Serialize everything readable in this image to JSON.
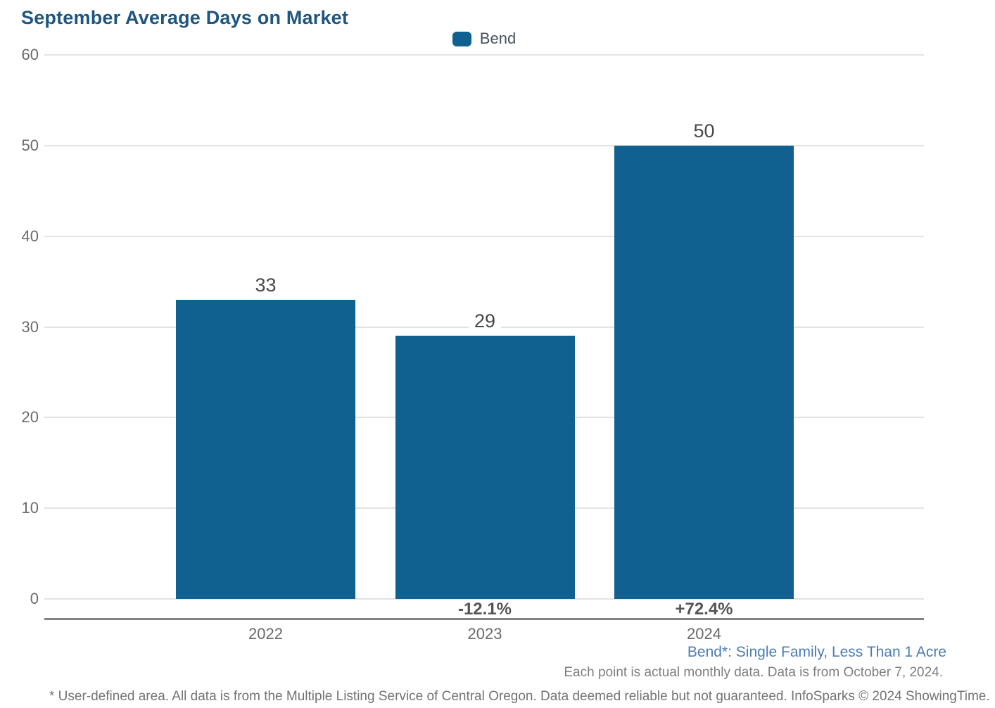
{
  "chart": {
    "title": "September Average Days on Market",
    "legend_label": "Bend"
  },
  "chart_data": {
    "type": "bar",
    "title": "September Average Days on Market",
    "categories": [
      "2022",
      "2023",
      "2024"
    ],
    "series": [
      {
        "name": "Bend",
        "values": [
          33,
          29,
          50
        ]
      }
    ],
    "value_labels": [
      "33",
      "29",
      "50"
    ],
    "pct_change_labels": [
      "",
      "-12.1%",
      "+72.4%"
    ],
    "ylabel": "",
    "xlabel": "",
    "ylim": [
      0,
      60
    ],
    "yticks": [
      0,
      10,
      20,
      30,
      40,
      50,
      60
    ],
    "grid": true,
    "legend_position": "top-center",
    "bar_color": "#10618f"
  },
  "footnotes": {
    "series_definition": "Bend*: Single Family, Less Than 1 Acre",
    "data_note": "Each point is actual monthly data. Data is from October 7, 2024.",
    "disclaimer": "* User-defined area. All data is from the Multiple Listing Service of Central Oregon. Data deemed reliable but not guaranteed. InfoSparks © 2024 ShowingTime."
  },
  "colors": {
    "bar": "#10618f",
    "title_text": "#1e567f",
    "axis_line": "#828282",
    "gridline": "#e3e3e3",
    "tick_text": "#6b6b6b",
    "value_text": "#474747",
    "pct_text": "#555555",
    "footnote_link_text": "#4b7db4",
    "footnote_text": "#7e7e7e"
  }
}
